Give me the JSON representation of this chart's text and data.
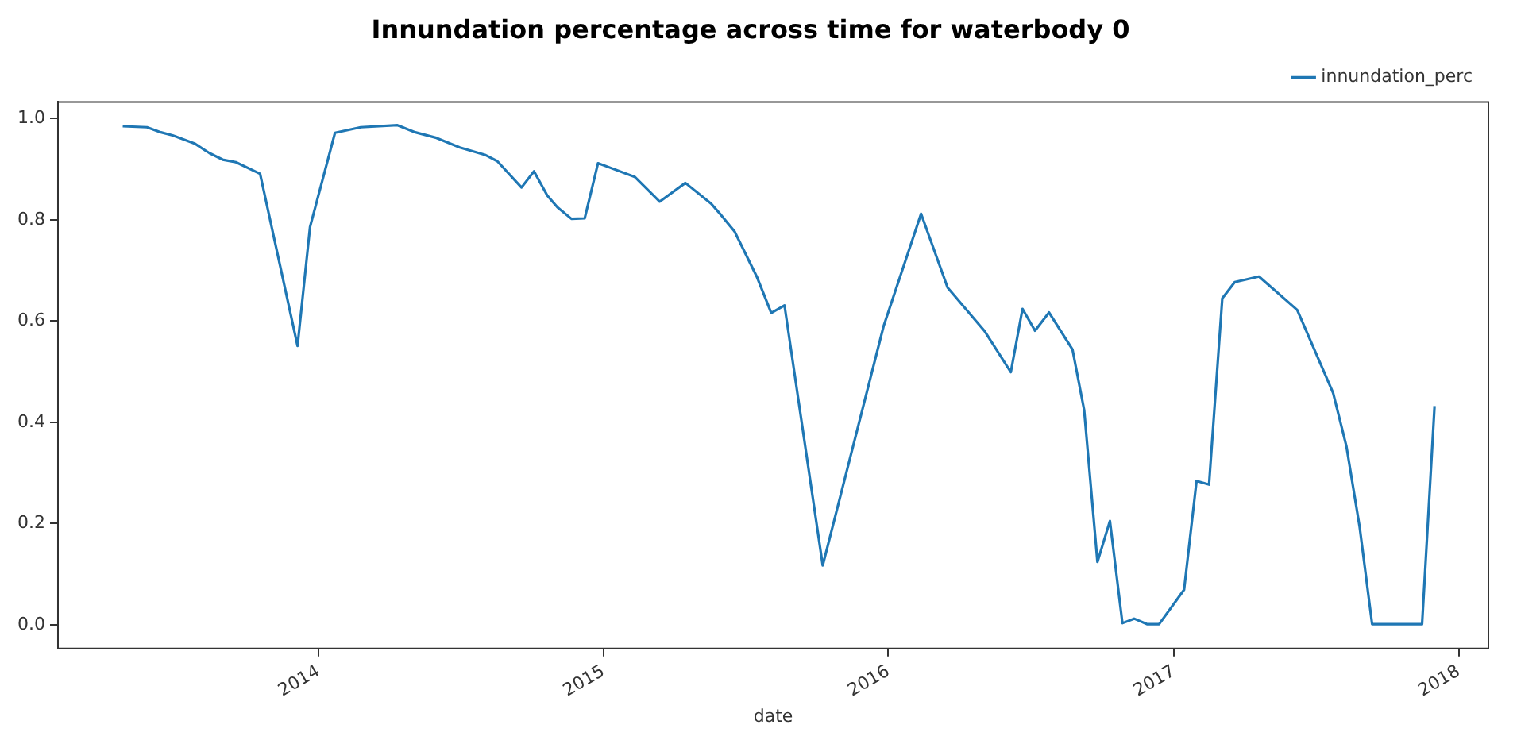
{
  "chart_data": {
    "type": "line",
    "title": "Innundation percentage across time for waterbody 0",
    "xlabel": "date",
    "x": [
      "2013-04-25",
      "2013-05-26",
      "2013-06-13",
      "2013-06-28",
      "2013-07-26",
      "2013-08-14",
      "2013-08-31",
      "2013-09-17",
      "2013-10-18",
      "2013-12-05",
      "2013-12-21",
      "2014-01-22",
      "2014-02-24",
      "2014-04-12",
      "2014-05-05",
      "2014-06-01",
      "2014-07-01",
      "2014-08-03",
      "2014-08-18",
      "2014-09-18",
      "2014-10-04",
      "2014-10-21",
      "2014-11-03",
      "2014-11-21",
      "2014-12-08",
      "2014-12-25",
      "2015-02-10",
      "2015-03-14",
      "2015-04-16",
      "2015-05-19",
      "2015-06-01",
      "2015-06-18",
      "2015-07-17",
      "2015-08-04",
      "2015-08-21",
      "2015-10-09",
      "2015-12-26",
      "2016-02-12",
      "2016-03-17",
      "2016-05-03",
      "2016-06-06",
      "2016-06-21",
      "2016-07-07",
      "2016-07-25",
      "2016-08-24",
      "2016-09-08",
      "2016-09-25",
      "2016-10-11",
      "2016-10-27",
      "2016-11-11",
      "2016-11-28",
      "2016-12-13",
      "2017-01-14",
      "2017-01-30",
      "2017-02-15",
      "2017-03-04",
      "2017-03-20",
      "2017-04-20",
      "2017-06-08",
      "2017-07-24",
      "2017-08-10",
      "2017-08-27",
      "2017-09-12",
      "2017-11-15",
      "2017-12-01"
    ],
    "series": [
      {
        "name": "innundation_perc",
        "color": "#1f77b4",
        "values": [
          0.985,
          0.983,
          0.973,
          0.967,
          0.951,
          0.932,
          0.919,
          0.914,
          0.891,
          0.551,
          0.786,
          0.972,
          0.983,
          0.987,
          0.973,
          0.962,
          0.943,
          0.928,
          0.916,
          0.864,
          0.896,
          0.848,
          0.825,
          0.802,
          0.803,
          0.912,
          0.885,
          0.836,
          0.873,
          0.832,
          0.809,
          0.777,
          0.686,
          0.616,
          0.631,
          0.117,
          0.59,
          0.812,
          0.666,
          0.581,
          0.499,
          0.624,
          0.581,
          0.617,
          0.544,
          0.424,
          0.124,
          0.205,
          0.003,
          0.012,
          0.001,
          0.001,
          0.069,
          0.284,
          0.277,
          0.645,
          0.677,
          0.688,
          0.622,
          0.458,
          0.353,
          0.193,
          0.001,
          0.001,
          0.432
        ]
      }
    ],
    "xlim": [
      "2013-02-01",
      "2018-02-08"
    ],
    "ylim": [
      -0.047,
      1.033
    ],
    "xticks": [
      {
        "value": "2014-01-01",
        "label": "2014"
      },
      {
        "value": "2015-01-01",
        "label": "2015"
      },
      {
        "value": "2016-01-01",
        "label": "2016"
      },
      {
        "value": "2017-01-01",
        "label": "2017"
      },
      {
        "value": "2018-01-01",
        "label": "2018"
      }
    ],
    "yticks": [
      {
        "value": 0,
        "label": "0.0"
      },
      {
        "value": 0.2,
        "label": "0.2"
      },
      {
        "value": 0.4,
        "label": "0.4"
      },
      {
        "value": 0.6,
        "label": "0.6"
      },
      {
        "value": 0.8,
        "label": "0.8"
      },
      {
        "value": 1,
        "label": "1.0"
      }
    ],
    "legend": "top right",
    "marker": "none",
    "line_style": "solid",
    "grid": false
  }
}
